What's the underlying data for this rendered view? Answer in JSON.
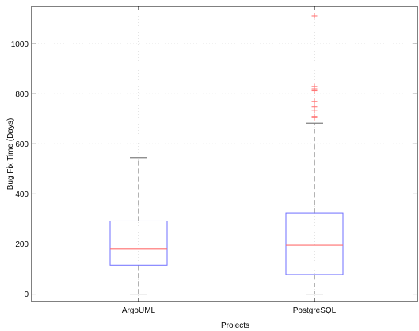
{
  "chart_data": {
    "type": "box",
    "xlabel": "Projects",
    "ylabel": "Bug Fix Time (Days)",
    "ylim": [
      -30,
      1150
    ],
    "yticks": [
      0,
      200,
      400,
      600,
      800,
      1000
    ],
    "grid": true,
    "categories": [
      "ArgoUML",
      "PostgreSQL"
    ],
    "boxes": [
      {
        "category": "ArgoUML",
        "min": 0,
        "q1": 115,
        "median": 180,
        "q3": 292,
        "max": 545,
        "outliers": []
      },
      {
        "category": "PostgreSQL",
        "min": 0,
        "q1": 78,
        "median": 195,
        "q3": 325,
        "max": 683,
        "outliers": [
          705,
          710,
          735,
          748,
          770,
          812,
          820,
          830,
          1112
        ]
      }
    ],
    "colors": {
      "box": "#6f6fff",
      "median": "#ff6f6f",
      "whisker": "#808080",
      "outlier": "#ff6f6f",
      "grid": "#c8c8c8"
    }
  }
}
